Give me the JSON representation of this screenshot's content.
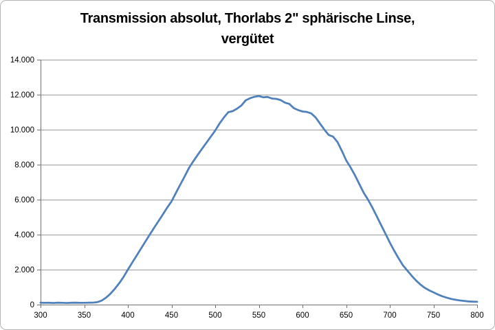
{
  "chart_data": {
    "type": "line",
    "title": "Transmission absolut, Thorlabs 2\" sphärische Linse, vergütet",
    "title_lines": [
      "Transmission absolut, Thorlabs 2\" sphärische Linse,",
      "vergütet"
    ],
    "xlabel": "",
    "ylabel": "",
    "xlim": [
      300,
      800
    ],
    "ylim": [
      0,
      14000
    ],
    "grid": "horizontal-major",
    "legend": "none",
    "x_ticks": [
      300,
      350,
      400,
      450,
      500,
      550,
      600,
      650,
      700,
      750,
      800
    ],
    "x_tick_labels": [
      "300",
      "350",
      "400",
      "450",
      "500",
      "550",
      "600",
      "650",
      "700",
      "750",
      "800"
    ],
    "y_ticks": [
      0,
      2000,
      4000,
      6000,
      8000,
      10000,
      12000,
      14000
    ],
    "y_tick_labels": [
      "0",
      "2.000",
      "4.000",
      "6.000",
      "8.000",
      "10.000",
      "12.000",
      "14.000"
    ],
    "x": [
      300,
      305,
      310,
      315,
      320,
      325,
      330,
      335,
      340,
      345,
      350,
      355,
      360,
      365,
      370,
      375,
      380,
      385,
      390,
      395,
      400,
      405,
      410,
      415,
      420,
      425,
      430,
      435,
      440,
      445,
      450,
      455,
      460,
      465,
      470,
      475,
      480,
      485,
      490,
      495,
      500,
      505,
      510,
      515,
      520,
      525,
      530,
      535,
      540,
      545,
      550,
      555,
      560,
      565,
      570,
      575,
      580,
      585,
      590,
      595,
      600,
      605,
      610,
      615,
      620,
      625,
      630,
      635,
      640,
      645,
      650,
      655,
      660,
      665,
      670,
      675,
      680,
      685,
      690,
      695,
      700,
      705,
      710,
      715,
      720,
      725,
      730,
      735,
      740,
      745,
      750,
      755,
      760,
      765,
      770,
      775,
      780,
      785,
      790,
      795,
      800
    ],
    "values": [
      110,
      100,
      105,
      95,
      110,
      100,
      95,
      105,
      110,
      100,
      100,
      110,
      115,
      140,
      230,
      400,
      620,
      900,
      1220,
      1580,
      2000,
      2400,
      2800,
      3200,
      3600,
      4000,
      4390,
      4770,
      5150,
      5540,
      5900,
      6380,
      6860,
      7330,
      7810,
      8200,
      8560,
      8910,
      9260,
      9600,
      9950,
      10350,
      10700,
      11000,
      11060,
      11200,
      11380,
      11680,
      11800,
      11880,
      11920,
      11850,
      11870,
      11780,
      11760,
      11690,
      11540,
      11470,
      11230,
      11120,
      11040,
      11010,
      10930,
      10700,
      10350,
      10000,
      9700,
      9600,
      9300,
      8800,
      8250,
      7850,
      7400,
      6900,
      6400,
      6000,
      5550,
      5050,
      4550,
      4050,
      3550,
      3080,
      2650,
      2250,
      1950,
      1650,
      1380,
      1150,
      960,
      820,
      700,
      580,
      480,
      400,
      330,
      280,
      240,
      210,
      185,
      170,
      160
    ],
    "colors": {
      "line": "#4F81BD",
      "gridline": "#9a9a9a",
      "axis": "#707070",
      "title": "#000000",
      "tick_label": "#000000",
      "background": "#ffffff",
      "border": "#b3b3b3"
    }
  }
}
